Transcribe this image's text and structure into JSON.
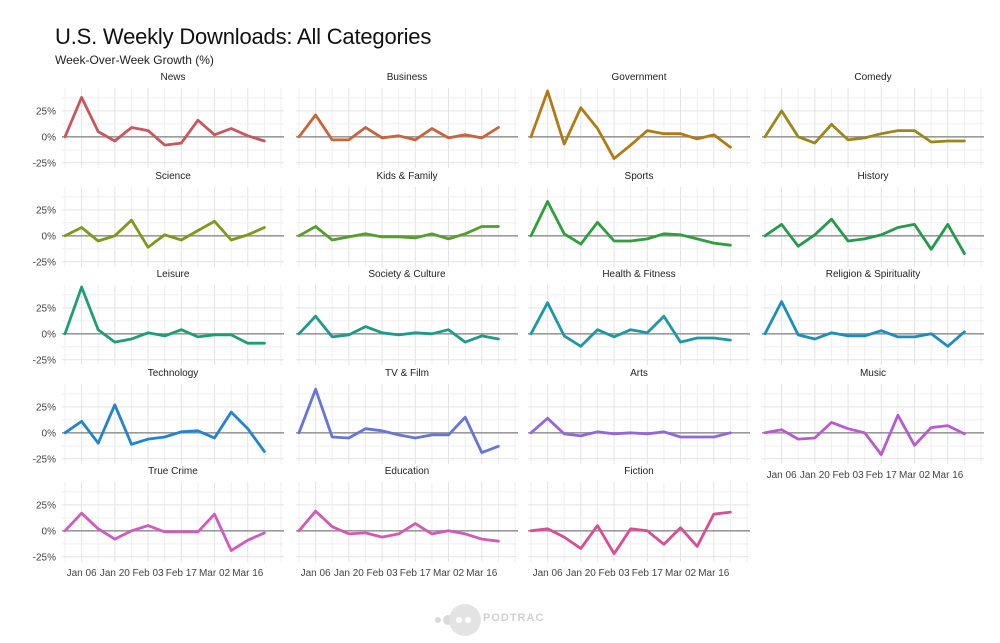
{
  "chart_data": {
    "type": "line",
    "title": "U.S. Weekly Downloads: All Categories",
    "subtitle": "Week-Over-Week Growth (%)",
    "x_ticks": [
      "Jan 06",
      "Jan 20",
      "Feb 03",
      "Feb 17",
      "Mar 02",
      "Mar 16"
    ],
    "x_tick_positions": [
      1,
      3,
      5,
      7,
      9,
      11
    ],
    "n_points": 14,
    "y_ticks": [
      "25%",
      "0%",
      "-25%"
    ],
    "y_tick_values": [
      25,
      0,
      -25
    ],
    "ylim": [
      -30,
      47
    ],
    "zero_line": true,
    "grid": true,
    "panels": [
      {
        "name": "News",
        "color": "#c9565b",
        "values": [
          0,
          38,
          5,
          -4,
          9,
          6,
          -8,
          -6,
          16,
          2,
          8,
          1,
          -4,
          null
        ]
      },
      {
        "name": "Business",
        "color": "#c8643a",
        "values": [
          0,
          21,
          -3,
          -3,
          9,
          -1,
          1,
          -3,
          8,
          -1,
          2,
          -1,
          9,
          null
        ]
      },
      {
        "name": "Government",
        "color": "#b07a14",
        "values": [
          0,
          44,
          -7,
          28,
          8,
          -21,
          -8,
          6,
          3,
          3,
          -2,
          2,
          -10,
          null
        ]
      },
      {
        "name": "Comedy",
        "color": "#9b8717",
        "values": [
          0,
          25,
          0,
          -6,
          12,
          -3,
          -1,
          3,
          6,
          6,
          -5,
          -4,
          -4,
          null
        ]
      },
      {
        "name": "Science",
        "color": "#7b9a1a",
        "values": [
          0,
          8,
          -5,
          0,
          15,
          -11,
          1,
          -4,
          5,
          14,
          -4,
          1,
          8,
          null
        ]
      },
      {
        "name": "Kids & Family",
        "color": "#549f2a",
        "values": [
          0,
          9,
          -4,
          -1,
          2,
          -1,
          -1,
          -2,
          2,
          -3,
          2,
          9,
          9,
          null
        ]
      },
      {
        "name": "Sports",
        "color": "#2e9f3c",
        "values": [
          0,
          33,
          2,
          -8,
          13,
          -5,
          -5,
          -3,
          2,
          1,
          -3,
          -7,
          -9,
          null
        ]
      },
      {
        "name": "History",
        "color": "#249b4b",
        "values": [
          0,
          11,
          -10,
          1,
          16,
          -5,
          -3,
          1,
          8,
          11,
          -13,
          11,
          -17,
          null
        ]
      },
      {
        "name": "Leisure",
        "color": "#1e9e76",
        "values": [
          0,
          45,
          4,
          -8,
          -5,
          1,
          -2,
          4,
          -3,
          -1,
          -1,
          -9,
          -9,
          null
        ]
      },
      {
        "name": "Society & Culture",
        "color": "#1d9a8a",
        "values": [
          0,
          17,
          -3,
          -1,
          7,
          1,
          -1,
          1,
          0,
          4,
          -8,
          -2,
          -5,
          null
        ]
      },
      {
        "name": "Health & Fitness",
        "color": "#1d98a6",
        "values": [
          0,
          30,
          -2,
          -12,
          4,
          -3,
          4,
          1,
          17,
          -8,
          -4,
          -4,
          -6,
          null
        ]
      },
      {
        "name": "Religion & Spirituality",
        "color": "#1d8cbf",
        "values": [
          0,
          31,
          -1,
          -5,
          1,
          -2,
          -2,
          3,
          -3,
          -3,
          0,
          -12,
          2,
          null
        ]
      },
      {
        "name": "Technology",
        "color": "#2183d1",
        "values": [
          0,
          11,
          -10,
          27,
          -11,
          -6,
          -4,
          1,
          2,
          -5,
          20,
          4,
          -18,
          null
        ]
      },
      {
        "name": "TV & Film",
        "color": "#6774d8",
        "values": [
          0,
          42,
          -4,
          -5,
          4,
          2,
          -2,
          -5,
          -2,
          -2,
          15,
          -19,
          -13,
          null
        ]
      },
      {
        "name": "Arts",
        "color": "#9566db",
        "values": [
          0,
          14,
          -1,
          -3,
          1,
          -1,
          0,
          -1,
          1,
          -4,
          -4,
          -4,
          0,
          null
        ]
      },
      {
        "name": "Music",
        "color": "#b85ad0",
        "values": [
          0,
          3,
          -6,
          -5,
          10,
          4,
          0,
          -21,
          17,
          -12,
          5,
          7,
          -1,
          null
        ]
      },
      {
        "name": "True Crime",
        "color": "#d05ac0",
        "values": [
          0,
          17,
          2,
          -8,
          0,
          5,
          -1,
          -1,
          -1,
          16,
          -19,
          -9,
          -2,
          null
        ]
      },
      {
        "name": "Education",
        "color": "#d459b2",
        "values": [
          0,
          19,
          4,
          -3,
          -2,
          -6,
          -3,
          7,
          -3,
          0,
          -3,
          -8,
          -10,
          null
        ]
      },
      {
        "name": "Fiction",
        "color": "#d94e92",
        "values": [
          0,
          2,
          -6,
          -17,
          5,
          -22,
          2,
          0,
          -13,
          3,
          -15,
          16,
          18,
          null
        ]
      }
    ]
  },
  "logo": {
    "text": "PODTRAC"
  }
}
